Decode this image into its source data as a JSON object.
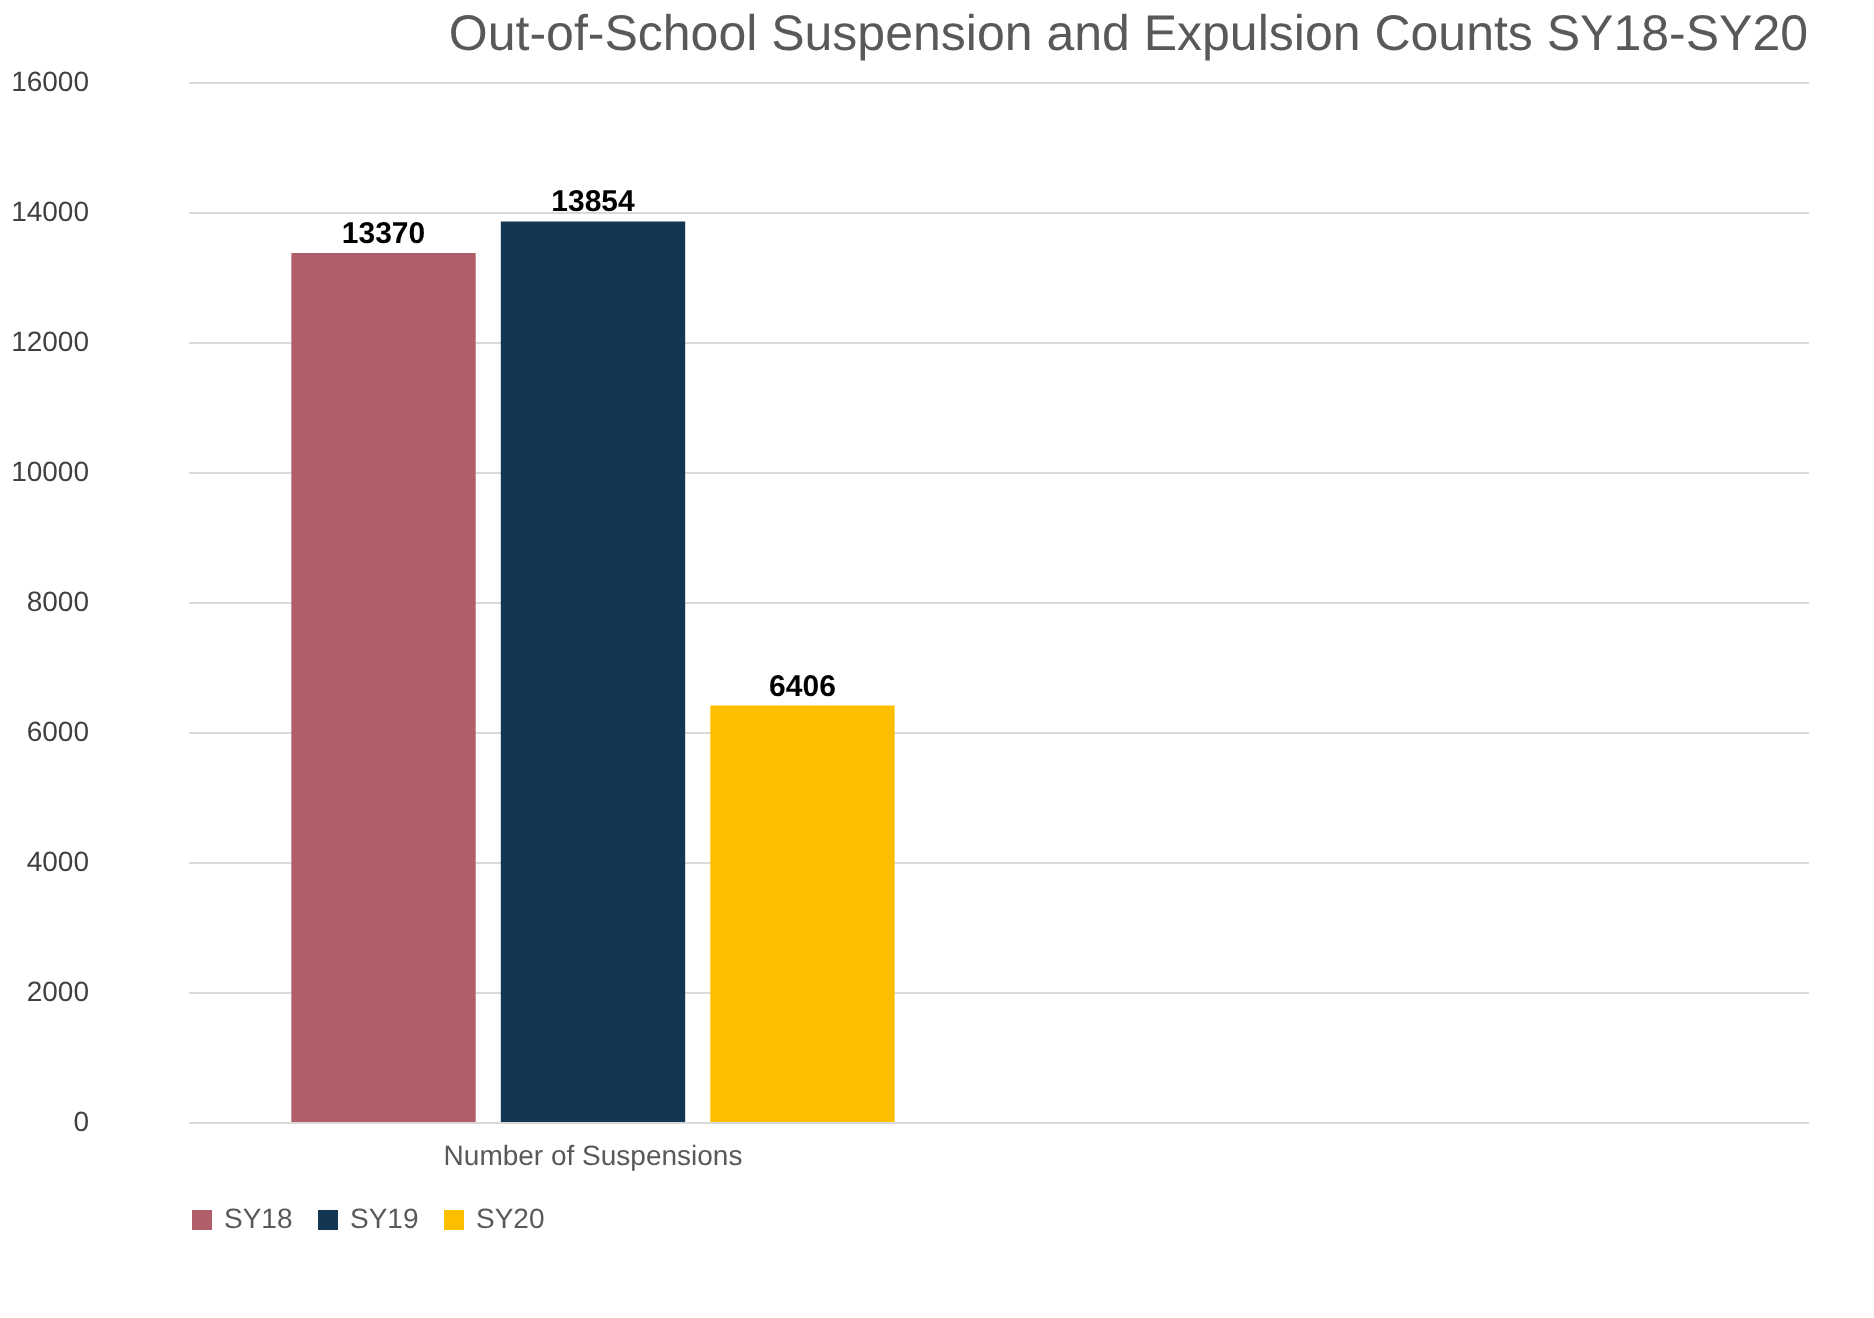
{
  "chart_data": {
    "type": "bar",
    "title": "Out-of-School Suspension and Expulsion Counts SY18-SY20",
    "categories": [
      "Number of Suspensions",
      null
    ],
    "series": [
      {
        "name": "SY18",
        "color": "#b05f6a",
        "values": [
          13370,
          null
        ]
      },
      {
        "name": "SY19",
        "color": "#133652",
        "values": [
          13854,
          null
        ]
      },
      {
        "name": "SY20",
        "color": "#fcbf00",
        "values": [
          6406,
          null
        ]
      }
    ],
    "ylim": [
      0,
      16000
    ],
    "yticks": [
      0,
      2000,
      4000,
      6000,
      8000,
      10000,
      12000,
      14000,
      16000
    ],
    "grid": "y",
    "legend": "bottom",
    "data_labels": true
  }
}
